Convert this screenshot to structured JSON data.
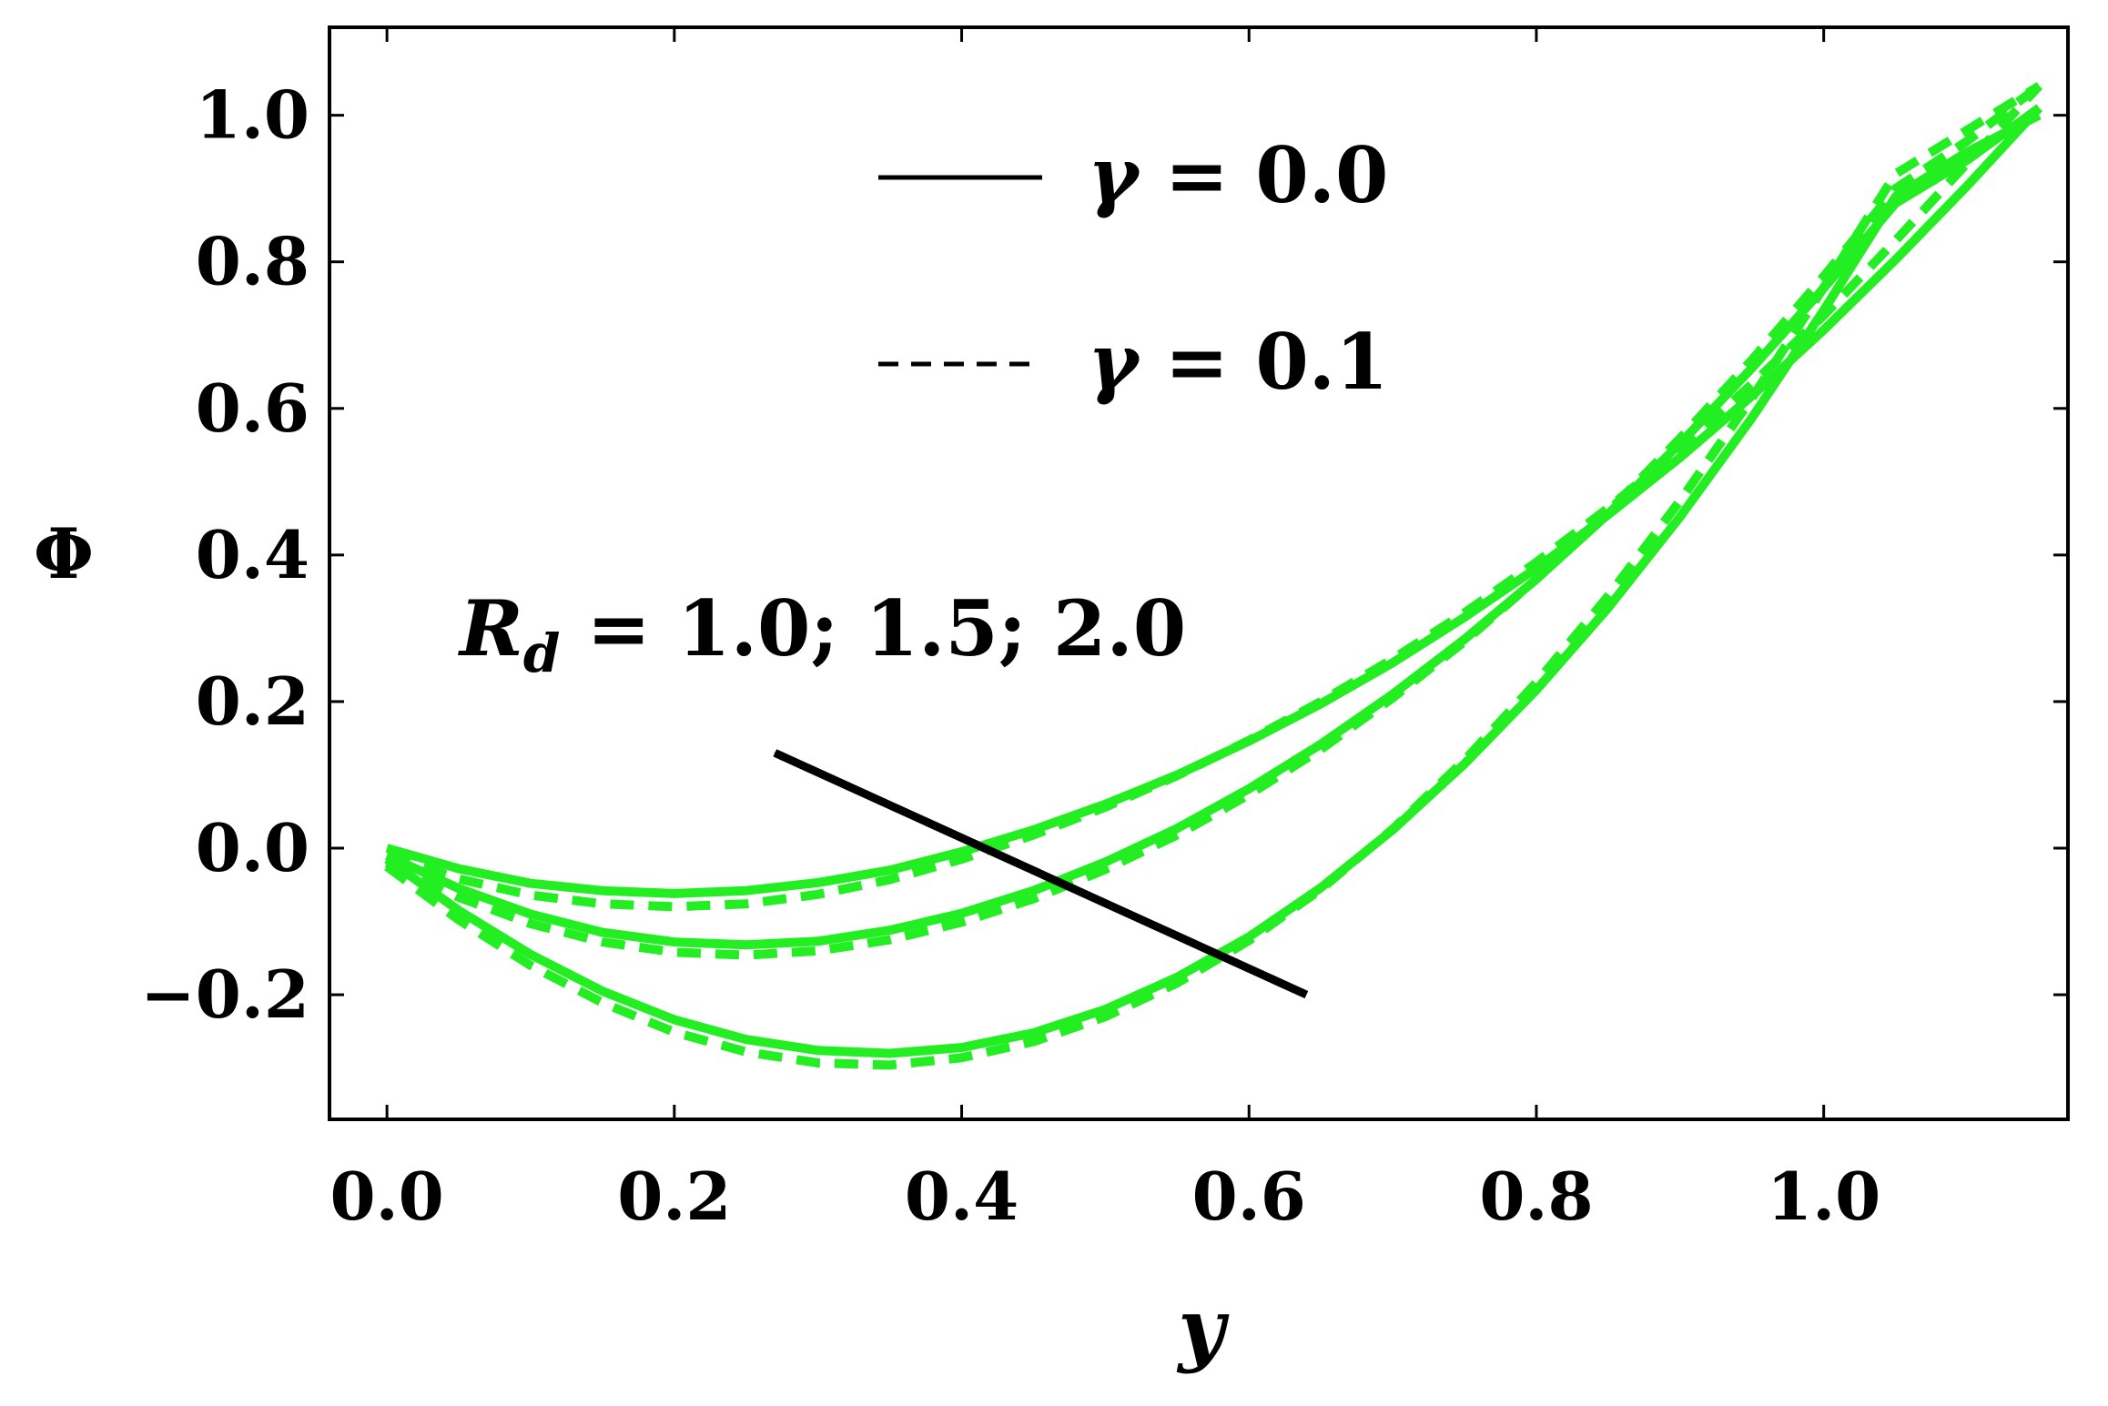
{
  "chart_data": {
    "type": "line",
    "title": "",
    "xlabel": "y",
    "ylabel": "Φ",
    "xlim": [
      -0.04,
      1.17
    ],
    "ylim": [
      -0.37,
      1.12
    ],
    "xticks": [
      0.0,
      0.2,
      0.4,
      0.6,
      0.8,
      1.0
    ],
    "xtick_labels": [
      "0.0",
      "0.2",
      "0.4",
      "0.6",
      "0.8",
      "1.0"
    ],
    "yticks": [
      -0.2,
      0.0,
      0.2,
      0.4,
      0.6,
      0.8,
      1.0
    ],
    "ytick_labels": [
      "−0.2",
      "0.0",
      "0.2",
      "0.4",
      "0.6",
      "0.8",
      "1.0"
    ],
    "grid": false,
    "legend_position": "top-center",
    "legend": [
      {
        "label": "γ = 0.0",
        "symbol": "γ",
        "value_text": " = 0.0",
        "style": "solid"
      },
      {
        "label": "γ = 0.1",
        "symbol": "γ",
        "value_text": " = 0.1",
        "style": "dashed"
      }
    ],
    "annotation": {
      "text": "R_d = 1.0; 1.5; 2.0",
      "base": "R",
      "subscript": "d",
      "rest": " = 1.0; 1.5; 2.0",
      "arrow_from": [
        0.64,
        -0.2
      ],
      "arrow_to": [
        0.27,
        0.13
      ]
    },
    "line_color": "#22ee22",
    "series": [
      {
        "style": "solid",
        "x": [
          0.0,
          0.05,
          0.1,
          0.15,
          0.2,
          0.25,
          0.3,
          0.35,
          0.4,
          0.45,
          0.5,
          0.55,
          0.6,
          0.65,
          0.7,
          0.75,
          0.8,
          0.85,
          0.9,
          0.95,
          1.0,
          1.05,
          1.1,
          1.15
        ],
        "y": [
          0.0,
          -0.028,
          -0.048,
          -0.058,
          -0.062,
          -0.058,
          -0.047,
          -0.03,
          -0.005,
          0.025,
          0.06,
          0.1,
          0.146,
          0.197,
          0.253,
          0.315,
          0.382,
          0.455,
          0.533,
          0.617,
          0.707,
          0.803,
          0.904,
          1.01
        ]
      },
      {
        "style": "solid",
        "x": [
          0.0,
          0.05,
          0.1,
          0.15,
          0.2,
          0.25,
          0.3,
          0.35,
          0.4,
          0.45,
          0.5,
          0.55,
          0.6,
          0.65,
          0.7,
          0.75,
          0.8,
          0.85,
          0.9,
          0.95,
          1.0,
          1.05,
          1.1,
          1.15
        ],
        "y": [
          -0.01,
          -0.055,
          -0.09,
          -0.115,
          -0.128,
          -0.132,
          -0.127,
          -0.112,
          -0.089,
          -0.058,
          -0.019,
          0.027,
          0.081,
          0.142,
          0.21,
          0.285,
          0.367,
          0.456,
          0.552,
          0.655,
          0.764,
          0.88,
          0.939,
          1.01
        ]
      },
      {
        "style": "solid",
        "x": [
          0.0,
          0.05,
          0.1,
          0.15,
          0.2,
          0.25,
          0.3,
          0.35,
          0.4,
          0.45,
          0.5,
          0.55,
          0.6,
          0.65,
          0.7,
          0.75,
          0.8,
          0.85,
          0.9,
          0.95,
          1.0,
          1.05,
          1.1,
          1.15
        ],
        "y": [
          -0.015,
          -0.085,
          -0.145,
          -0.195,
          -0.234,
          -0.261,
          -0.276,
          -0.28,
          -0.272,
          -0.252,
          -0.22,
          -0.176,
          -0.121,
          -0.054,
          0.025,
          0.115,
          0.216,
          0.328,
          0.452,
          0.587,
          0.734,
          0.889,
          0.95,
          1.0
        ]
      },
      {
        "style": "dashed",
        "x": [
          0.0,
          0.05,
          0.1,
          0.15,
          0.2,
          0.25,
          0.3,
          0.35,
          0.4,
          0.45,
          0.5,
          0.55,
          0.6,
          0.65,
          0.7,
          0.75,
          0.8,
          0.85,
          0.9,
          0.95,
          1.0,
          1.05,
          1.1,
          1.15
        ],
        "y": [
          -0.01,
          -0.042,
          -0.064,
          -0.076,
          -0.08,
          -0.076,
          -0.063,
          -0.043,
          -0.015,
          0.018,
          0.056,
          0.099,
          0.147,
          0.2,
          0.258,
          0.321,
          0.39,
          0.464,
          0.545,
          0.633,
          0.727,
          0.829,
          0.935,
          1.04
        ]
      },
      {
        "style": "dashed",
        "x": [
          0.0,
          0.05,
          0.1,
          0.15,
          0.2,
          0.25,
          0.3,
          0.35,
          0.4,
          0.45,
          0.5,
          0.55,
          0.6,
          0.65,
          0.7,
          0.75,
          0.8,
          0.85,
          0.9,
          0.95,
          1.0,
          1.05,
          1.1,
          1.15
        ],
        "y": [
          -0.02,
          -0.067,
          -0.103,
          -0.128,
          -0.142,
          -0.146,
          -0.14,
          -0.125,
          -0.101,
          -0.069,
          -0.029,
          0.018,
          0.073,
          0.135,
          0.205,
          0.282,
          0.367,
          0.459,
          0.559,
          0.666,
          0.78,
          0.9,
          0.965,
          1.04
        ]
      },
      {
        "style": "dashed",
        "x": [
          0.0,
          0.05,
          0.1,
          0.15,
          0.2,
          0.25,
          0.3,
          0.35,
          0.4,
          0.45,
          0.5,
          0.55,
          0.6,
          0.65,
          0.7,
          0.75,
          0.8,
          0.85,
          0.9,
          0.95,
          1.0,
          1.05,
          1.1,
          1.15
        ],
        "y": [
          -0.025,
          -0.098,
          -0.16,
          -0.211,
          -0.251,
          -0.278,
          -0.293,
          -0.296,
          -0.286,
          -0.264,
          -0.23,
          -0.184,
          -0.126,
          -0.056,
          0.026,
          0.12,
          0.226,
          0.344,
          0.474,
          0.614,
          0.765,
          0.92,
          0.98,
          1.04
        ]
      }
    ]
  }
}
